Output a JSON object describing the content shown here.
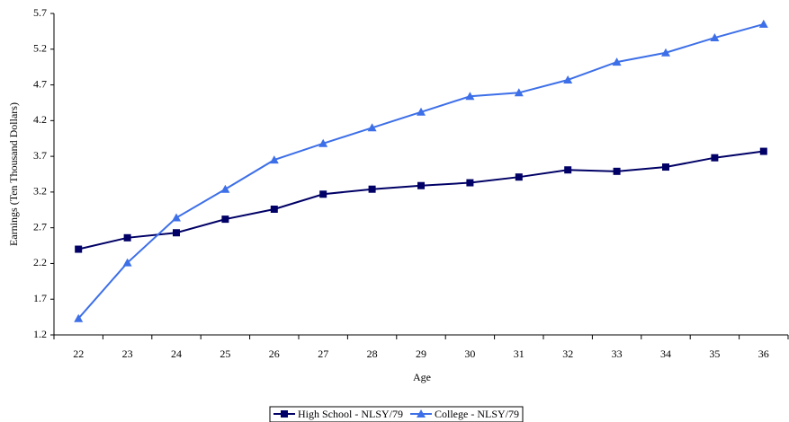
{
  "chart_data": {
    "type": "line",
    "x_label": "Age",
    "y_label": "Earnings (Ten Thousand Dollars)",
    "categories": [
      "22",
      "23",
      "24",
      "25",
      "26",
      "27",
      "28",
      "29",
      "30",
      "31",
      "32",
      "33",
      "34",
      "35",
      "36"
    ],
    "series": [
      {
        "name": "High School - NLSY/79",
        "color": "#000066",
        "marker": "square",
        "values": [
          2.4,
          2.56,
          2.63,
          2.82,
          2.96,
          3.17,
          3.24,
          3.29,
          3.33,
          3.41,
          3.51,
          3.49,
          3.55,
          3.68,
          3.77
        ]
      },
      {
        "name": "College - NLSY/79",
        "color": "#3d6fe8",
        "marker": "triangle",
        "values": [
          1.43,
          2.21,
          2.84,
          3.24,
          3.65,
          3.88,
          4.1,
          4.32,
          4.54,
          4.59,
          4.77,
          5.02,
          5.15,
          5.36,
          5.55
        ]
      }
    ],
    "ylim": [
      1.2,
      5.7
    ],
    "yticks": [
      1.2,
      1.7,
      2.2,
      2.7,
      3.2,
      3.7,
      4.2,
      4.7,
      5.2,
      5.7
    ],
    "grid": false
  }
}
